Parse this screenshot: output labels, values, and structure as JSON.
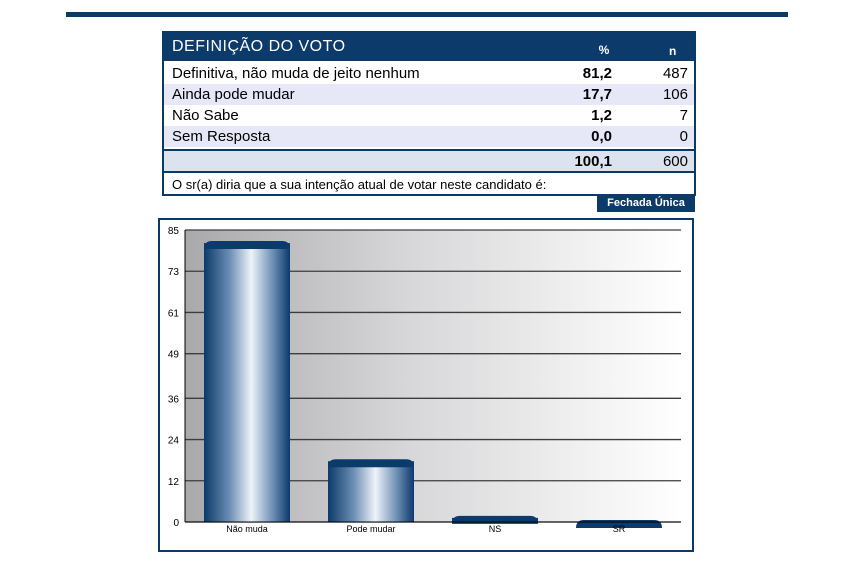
{
  "table": {
    "title": "Definição do voto",
    "col_pct": "%",
    "col_n": "n",
    "rows": [
      {
        "label": "Definitiva, não muda de jeito nenhum",
        "pct": "81,2",
        "n": "487"
      },
      {
        "label": "Ainda pode mudar",
        "pct": "17,7",
        "n": "106"
      },
      {
        "label": "Não Sabe",
        "pct": "1,2",
        "n": "7"
      },
      {
        "label": "Sem Resposta",
        "pct": "0,0",
        "n": "0"
      }
    ],
    "total": {
      "pct": "100,1",
      "n": "600"
    },
    "question": "O sr(a) diria que a sua intenção atual de votar neste candidato é:",
    "question_type": "Fechada Única"
  },
  "chart_data": {
    "type": "bar",
    "categories": [
      "Não muda",
      "Pode mudar",
      "NS",
      "SR"
    ],
    "values": [
      81.2,
      17.7,
      1.2,
      0.0
    ],
    "yticks": [
      0,
      12,
      24,
      36,
      49,
      61,
      73,
      85
    ],
    "ylim": [
      0,
      85
    ],
    "grid": true,
    "bar_color": "#0b3a6b"
  }
}
